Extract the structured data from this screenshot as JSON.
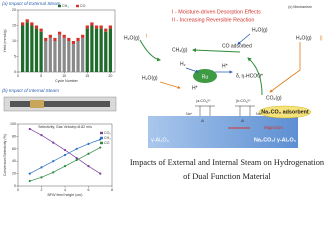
{
  "chart_data": [
    {
      "type": "bar",
      "title": "(a) Impact of External Steam",
      "x_label": "Cycle Number",
      "y_label": "Yield (mmol/g)",
      "x": [
        1,
        2,
        3,
        4,
        5,
        6,
        7,
        8,
        9,
        10,
        11,
        12,
        13,
        14,
        15,
        16,
        17,
        18,
        19,
        20
      ],
      "xlim": [
        0,
        21
      ],
      "xticks": [
        0,
        5,
        10,
        15,
        20
      ],
      "ylim": [
        0,
        20
      ],
      "yticks": [
        0,
        5,
        10,
        15,
        20
      ],
      "stacked": true,
      "series": [
        {
          "name": "CH₄",
          "color": "#1e6b2b",
          "colors": [
            "#1e6b2b",
            "#1e6b2b",
            "#1e6b2b",
            "#1e6b2b",
            "#1e6b2b",
            "#8a8a8a",
            "#8a8a8a",
            "#8a8a8a",
            "#8a8a8a",
            "#8a8a8a",
            "#8a8a8a",
            "#8a8a8a",
            "#8a8a8a",
            "#8a8a8a",
            "#1e6b2b",
            "#1e6b2b",
            "#1e6b2b",
            "#1e6b2b",
            "#1e6b2b",
            "#1e6b2b"
          ],
          "values": [
            15,
            16,
            15,
            14,
            13,
            10,
            11,
            10,
            12,
            11,
            10,
            9,
            10,
            11,
            14,
            15,
            14,
            14,
            13,
            14
          ]
        },
        {
          "name": "CO",
          "color": "#d2342c",
          "values": [
            1,
            1,
            1,
            1,
            1,
            1,
            1,
            1,
            1,
            1,
            1,
            1,
            1,
            1,
            1,
            1,
            1,
            1,
            1,
            1
          ]
        }
      ]
    },
    {
      "type": "line",
      "title": "(b) Impact of Internal Steam",
      "subtitle": "Selectivity, Gas Velocity=8.82 m/s",
      "x_label": "BFW feed height (cm)",
      "y_label": "Conversion/Selectivity (%)",
      "x": [
        1,
        2,
        3,
        4,
        5,
        6,
        7
      ],
      "xlim": [
        0,
        8
      ],
      "xticks": [
        0,
        2,
        4,
        6,
        8
      ],
      "ylim": [
        0,
        100
      ],
      "yticks": [
        0,
        20,
        40,
        60,
        80,
        100
      ],
      "series": [
        {
          "name": "CO₂",
          "color": "#7b3fa0",
          "values": [
            92,
            82,
            70,
            58,
            45,
            32,
            20
          ]
        },
        {
          "name": "CH₄",
          "color": "#2f6fc4",
          "values": [
            20,
            30,
            40,
            50,
            60,
            68,
            75
          ]
        },
        {
          "name": "CO",
          "color": "#2b8a3e",
          "values": [
            8,
            14,
            22,
            32,
            42,
            52,
            62
          ]
        }
      ]
    }
  ],
  "diagram": {
    "title": "(c) Mechanism",
    "notes": [
      "I - Moisture-driven Desorption Effects",
      "II - Increasing Reversible Reaction"
    ],
    "labels": {
      "h2o_left": "H₂O(g)",
      "h2o_top": "H₂O(g)",
      "h2o_right": "H₂O(g)",
      "h2o_mid": "H₂O(g)",
      "ch4": "CH₄(g)",
      "co_ads": "CO adsorbed",
      "h2": "H₂",
      "h_star1": "H*",
      "h_star2": "H*",
      "ru": "Ru",
      "hcoo": "δ, η-HCOO*",
      "co2": "CO₂(g)",
      "mark_i": "I",
      "mark_ii": "||",
      "a_co3": "(a-CO₃)²⁻",
      "b_co3": "(b-CO₃)²⁻",
      "na1": "Na⁺",
      "na2": "Na⁺",
      "al1": "Al",
      "al2": "Al",
      "support": "γ-Al₂O₃",
      "adsorbent": "Na₂CO₃ adsorbent",
      "migration": "Migration",
      "interface": "Na₂CO₃/ γ-Al₂O₃ Interface"
    }
  },
  "caption": [
    "Impacts of External and Internal Steam on Hydrogenation",
    "of Dual Function Material"
  ]
}
